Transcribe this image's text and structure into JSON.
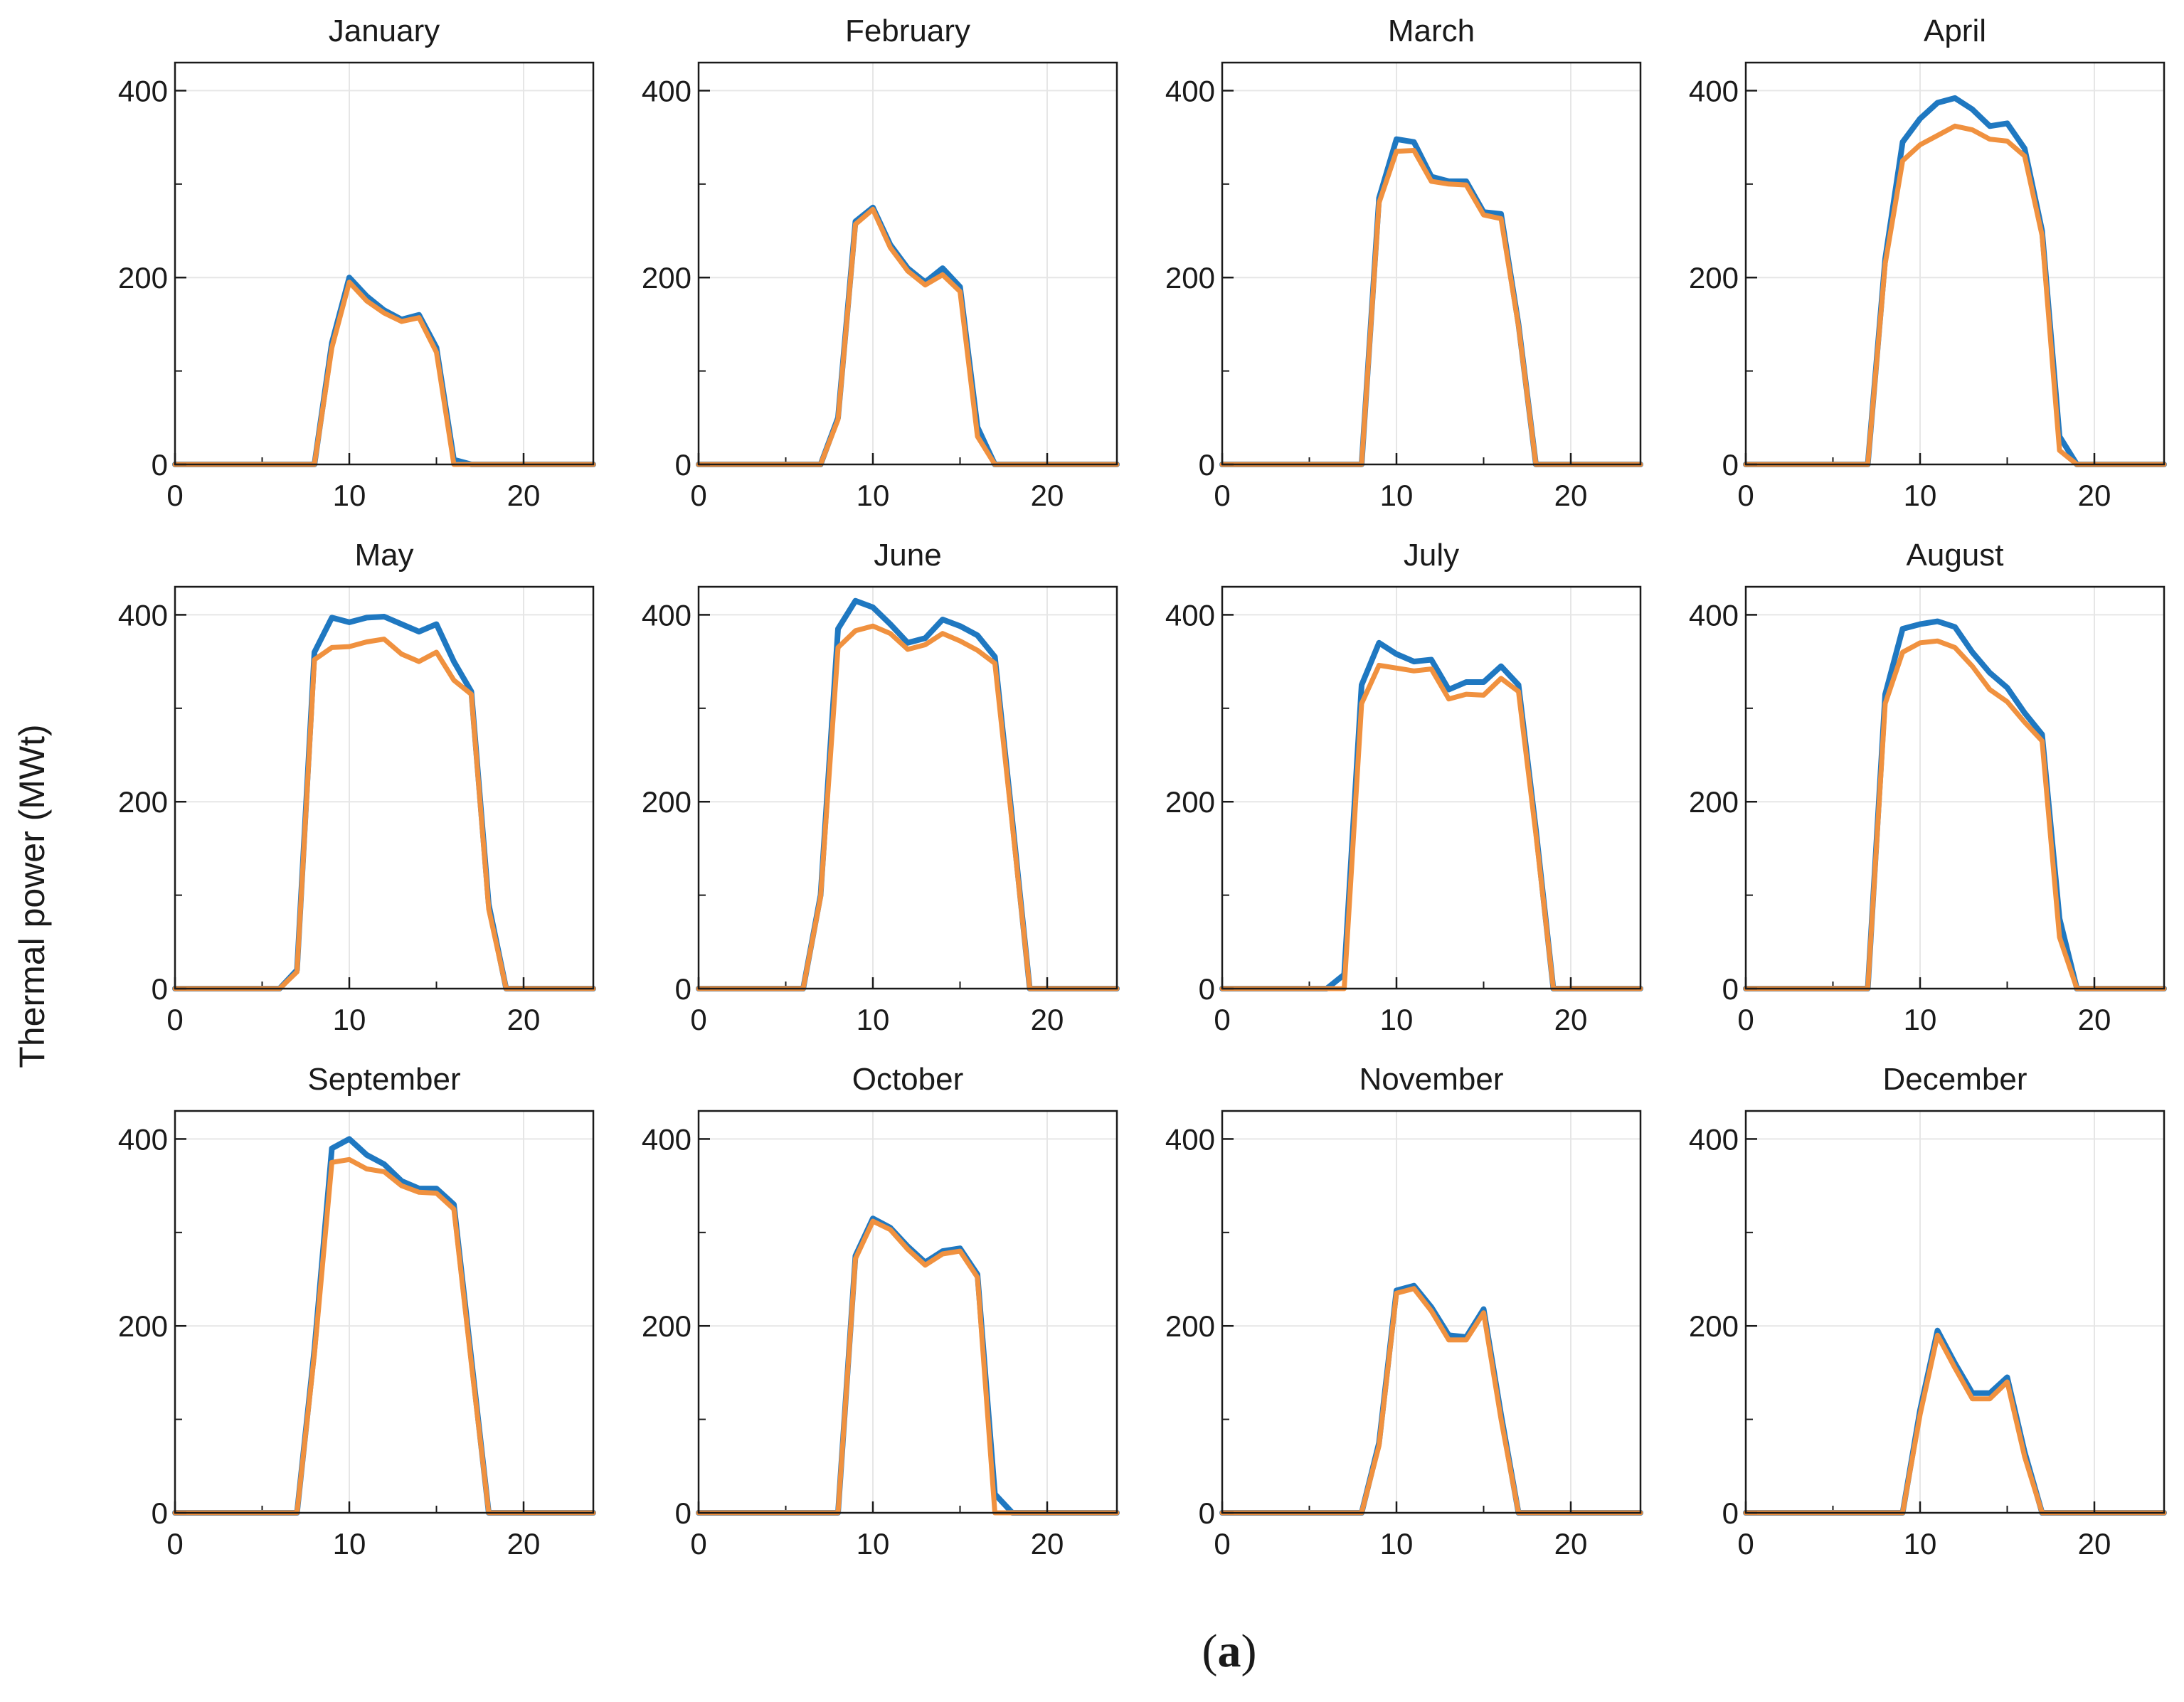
{
  "figure": {
    "ylabel": "Thermal power (MWt)",
    "caption": {
      "open": "(",
      "letter": "a",
      "close": ")"
    }
  },
  "colors": {
    "series_blue": "#1f78c1",
    "series_orange": "#f0913f",
    "grid": "#e6e6e6",
    "axis": "#1a1a1a"
  },
  "chart_data": [
    {
      "type": "line",
      "title": "January",
      "xlim": [
        0,
        24
      ],
      "ylim": [
        0,
        430
      ],
      "xticks": [
        0,
        10,
        20
      ],
      "yticks": [
        0,
        200,
        400
      ],
      "grid": true,
      "x": [
        0,
        1,
        2,
        3,
        4,
        5,
        6,
        7,
        8,
        9,
        10,
        11,
        12,
        13,
        14,
        15,
        16,
        17,
        18,
        19,
        20,
        21,
        22,
        23,
        24
      ],
      "series": [
        {
          "name": "series 1 (blue)",
          "values": [
            0,
            0,
            0,
            0,
            0,
            0,
            0,
            0,
            0,
            130,
            200,
            180,
            165,
            155,
            160,
            125,
            5,
            0,
            0,
            0,
            0,
            0,
            0,
            0,
            0
          ]
        },
        {
          "name": "series 2 (orange)",
          "values": [
            0,
            0,
            0,
            0,
            0,
            0,
            0,
            0,
            0,
            125,
            195,
            175,
            162,
            153,
            157,
            120,
            0,
            0,
            0,
            0,
            0,
            0,
            0,
            0,
            0
          ]
        }
      ]
    },
    {
      "type": "line",
      "title": "February",
      "xlim": [
        0,
        24
      ],
      "ylim": [
        0,
        430
      ],
      "xticks": [
        0,
        10,
        20
      ],
      "yticks": [
        0,
        200,
        400
      ],
      "grid": true,
      "x": [
        0,
        1,
        2,
        3,
        4,
        5,
        6,
        7,
        8,
        9,
        10,
        11,
        12,
        13,
        14,
        15,
        16,
        17,
        18,
        19,
        20,
        21,
        22,
        23,
        24
      ],
      "series": [
        {
          "name": "series 1 (blue)",
          "values": [
            0,
            0,
            0,
            0,
            0,
            0,
            0,
            0,
            50,
            260,
            275,
            235,
            210,
            195,
            210,
            190,
            40,
            0,
            0,
            0,
            0,
            0,
            0,
            0,
            0
          ]
        },
        {
          "name": "series 2 (orange)",
          "values": [
            0,
            0,
            0,
            0,
            0,
            0,
            0,
            0,
            48,
            257,
            273,
            232,
            207,
            192,
            203,
            185,
            30,
            0,
            0,
            0,
            0,
            0,
            0,
            0,
            0
          ]
        }
      ]
    },
    {
      "type": "line",
      "title": "March",
      "xlim": [
        0,
        24
      ],
      "ylim": [
        0,
        430
      ],
      "xticks": [
        0,
        10,
        20
      ],
      "yticks": [
        0,
        200,
        400
      ],
      "grid": true,
      "x": [
        0,
        1,
        2,
        3,
        4,
        5,
        6,
        7,
        8,
        9,
        10,
        11,
        12,
        13,
        14,
        15,
        16,
        17,
        18,
        19,
        20,
        21,
        22,
        23,
        24
      ],
      "series": [
        {
          "name": "series 1 (blue)",
          "values": [
            0,
            0,
            0,
            0,
            0,
            0,
            0,
            0,
            0,
            285,
            348,
            345,
            308,
            303,
            303,
            270,
            268,
            150,
            0,
            0,
            0,
            0,
            0,
            0,
            0
          ]
        },
        {
          "name": "series 2 (orange)",
          "values": [
            0,
            0,
            0,
            0,
            0,
            0,
            0,
            0,
            0,
            280,
            335,
            336,
            303,
            300,
            299,
            267,
            263,
            148,
            0,
            0,
            0,
            0,
            0,
            0,
            0
          ]
        }
      ]
    },
    {
      "type": "line",
      "title": "April",
      "xlim": [
        0,
        24
      ],
      "ylim": [
        0,
        430
      ],
      "xticks": [
        0,
        10,
        20
      ],
      "yticks": [
        0,
        200,
        400
      ],
      "grid": true,
      "x": [
        0,
        1,
        2,
        3,
        4,
        5,
        6,
        7,
        8,
        9,
        10,
        11,
        12,
        13,
        14,
        15,
        16,
        17,
        18,
        19,
        20,
        21,
        22,
        23,
        24
      ],
      "series": [
        {
          "name": "series 1 (blue)",
          "values": [
            0,
            0,
            0,
            0,
            0,
            0,
            0,
            0,
            220,
            345,
            370,
            387,
            392,
            380,
            362,
            365,
            338,
            250,
            30,
            0,
            0,
            0,
            0,
            0,
            0
          ]
        },
        {
          "name": "series 2 (orange)",
          "values": [
            0,
            0,
            0,
            0,
            0,
            0,
            0,
            0,
            215,
            325,
            342,
            352,
            362,
            358,
            348,
            346,
            330,
            245,
            15,
            0,
            0,
            0,
            0,
            0,
            0
          ]
        }
      ]
    },
    {
      "type": "line",
      "title": "May",
      "xlim": [
        0,
        24
      ],
      "ylim": [
        0,
        430
      ],
      "xticks": [
        0,
        10,
        20
      ],
      "yticks": [
        0,
        200,
        400
      ],
      "grid": true,
      "x": [
        0,
        1,
        2,
        3,
        4,
        5,
        6,
        7,
        8,
        9,
        10,
        11,
        12,
        13,
        14,
        15,
        16,
        17,
        18,
        19,
        20,
        21,
        22,
        23,
        24
      ],
      "series": [
        {
          "name": "series 1 (blue)",
          "values": [
            0,
            0,
            0,
            0,
            0,
            0,
            0,
            20,
            360,
            397,
            392,
            397,
            398,
            390,
            382,
            390,
            350,
            318,
            90,
            0,
            0,
            0,
            0,
            0,
            0
          ]
        },
        {
          "name": "series 2 (orange)",
          "values": [
            0,
            0,
            0,
            0,
            0,
            0,
            0,
            18,
            352,
            365,
            366,
            371,
            374,
            358,
            350,
            360,
            330,
            315,
            85,
            0,
            0,
            0,
            0,
            0,
            0
          ]
        }
      ]
    },
    {
      "type": "line",
      "title": "June",
      "xlim": [
        0,
        24
      ],
      "ylim": [
        0,
        430
      ],
      "xticks": [
        0,
        10,
        20
      ],
      "yticks": [
        0,
        200,
        400
      ],
      "grid": true,
      "x": [
        0,
        1,
        2,
        3,
        4,
        5,
        6,
        7,
        8,
        9,
        10,
        11,
        12,
        13,
        14,
        15,
        16,
        17,
        18,
        19,
        20,
        21,
        22,
        23,
        24
      ],
      "series": [
        {
          "name": "series 1 (blue)",
          "values": [
            0,
            0,
            0,
            0,
            0,
            0,
            0,
            100,
            385,
            415,
            408,
            390,
            370,
            375,
            395,
            388,
            378,
            355,
            180,
            0,
            0,
            0,
            0,
            0,
            0
          ]
        },
        {
          "name": "series 2 (orange)",
          "values": [
            0,
            0,
            0,
            0,
            0,
            0,
            0,
            98,
            365,
            383,
            388,
            380,
            363,
            368,
            380,
            372,
            362,
            348,
            175,
            0,
            0,
            0,
            0,
            0,
            0
          ]
        }
      ]
    },
    {
      "type": "line",
      "title": "July",
      "xlim": [
        0,
        24
      ],
      "ylim": [
        0,
        430
      ],
      "xticks": [
        0,
        10,
        20
      ],
      "yticks": [
        0,
        200,
        400
      ],
      "grid": true,
      "x": [
        0,
        1,
        2,
        3,
        4,
        5,
        6,
        7,
        8,
        9,
        10,
        11,
        12,
        13,
        14,
        15,
        16,
        17,
        18,
        19,
        20,
        21,
        22,
        23,
        24
      ],
      "series": [
        {
          "name": "series 1 (blue)",
          "values": [
            0,
            0,
            0,
            0,
            0,
            0,
            0,
            15,
            325,
            370,
            358,
            350,
            352,
            320,
            328,
            328,
            345,
            325,
            170,
            0,
            0,
            0,
            0,
            0,
            0
          ]
        },
        {
          "name": "series 2 (orange)",
          "values": [
            0,
            0,
            0,
            0,
            0,
            0,
            0,
            0,
            305,
            346,
            343,
            340,
            342,
            310,
            315,
            314,
            332,
            318,
            165,
            0,
            0,
            0,
            0,
            0,
            0
          ]
        }
      ]
    },
    {
      "type": "line",
      "title": "August",
      "xlim": [
        0,
        24
      ],
      "ylim": [
        0,
        430
      ],
      "xticks": [
        0,
        10,
        20
      ],
      "yticks": [
        0,
        200,
        400
      ],
      "grid": true,
      "x": [
        0,
        1,
        2,
        3,
        4,
        5,
        6,
        7,
        8,
        9,
        10,
        11,
        12,
        13,
        14,
        15,
        16,
        17,
        18,
        19,
        20,
        21,
        22,
        23,
        24
      ],
      "series": [
        {
          "name": "series 1 (blue)",
          "values": [
            0,
            0,
            0,
            0,
            0,
            0,
            0,
            0,
            315,
            385,
            390,
            393,
            387,
            360,
            338,
            322,
            295,
            272,
            75,
            0,
            0,
            0,
            0,
            0,
            0
          ]
        },
        {
          "name": "series 2 (orange)",
          "values": [
            0,
            0,
            0,
            0,
            0,
            0,
            0,
            0,
            305,
            360,
            370,
            372,
            365,
            345,
            320,
            307,
            285,
            265,
            55,
            0,
            0,
            0,
            0,
            0,
            0
          ]
        }
      ]
    },
    {
      "type": "line",
      "title": "September",
      "xlim": [
        0,
        24
      ],
      "ylim": [
        0,
        430
      ],
      "xticks": [
        0,
        10,
        20
      ],
      "yticks": [
        0,
        200,
        400
      ],
      "grid": true,
      "x": [
        0,
        1,
        2,
        3,
        4,
        5,
        6,
        7,
        8,
        9,
        10,
        11,
        12,
        13,
        14,
        15,
        16,
        17,
        18,
        19,
        20,
        21,
        22,
        23,
        24
      ],
      "series": [
        {
          "name": "series 1 (blue)",
          "values": [
            0,
            0,
            0,
            0,
            0,
            0,
            0,
            0,
            175,
            390,
            400,
            383,
            373,
            355,
            347,
            347,
            330,
            165,
            0,
            0,
            0,
            0,
            0,
            0,
            0
          ]
        },
        {
          "name": "series 2 (orange)",
          "values": [
            0,
            0,
            0,
            0,
            0,
            0,
            0,
            0,
            170,
            375,
            378,
            368,
            365,
            350,
            343,
            342,
            325,
            160,
            0,
            0,
            0,
            0,
            0,
            0,
            0
          ]
        }
      ]
    },
    {
      "type": "line",
      "title": "October",
      "xlim": [
        0,
        24
      ],
      "ylim": [
        0,
        430
      ],
      "xticks": [
        0,
        10,
        20
      ],
      "yticks": [
        0,
        200,
        400
      ],
      "grid": true,
      "x": [
        0,
        1,
        2,
        3,
        4,
        5,
        6,
        7,
        8,
        9,
        10,
        11,
        12,
        13,
        14,
        15,
        16,
        17,
        18,
        19,
        20,
        21,
        22,
        23,
        24
      ],
      "series": [
        {
          "name": "series 1 (blue)",
          "values": [
            0,
            0,
            0,
            0,
            0,
            0,
            0,
            0,
            0,
            275,
            315,
            305,
            285,
            268,
            280,
            283,
            255,
            20,
            0,
            0,
            0,
            0,
            0,
            0,
            0
          ]
        },
        {
          "name": "series 2 (orange)",
          "values": [
            0,
            0,
            0,
            0,
            0,
            0,
            0,
            0,
            0,
            272,
            312,
            303,
            282,
            265,
            277,
            280,
            252,
            0,
            0,
            0,
            0,
            0,
            0,
            0,
            0
          ]
        }
      ]
    },
    {
      "type": "line",
      "title": "November",
      "xlim": [
        0,
        24
      ],
      "ylim": [
        0,
        430
      ],
      "xticks": [
        0,
        10,
        20
      ],
      "yticks": [
        0,
        200,
        400
      ],
      "grid": true,
      "x": [
        0,
        1,
        2,
        3,
        4,
        5,
        6,
        7,
        8,
        9,
        10,
        11,
        12,
        13,
        14,
        15,
        16,
        17,
        18,
        19,
        20,
        21,
        22,
        23,
        24
      ],
      "series": [
        {
          "name": "series 1 (blue)",
          "values": [
            0,
            0,
            0,
            0,
            0,
            0,
            0,
            0,
            0,
            75,
            238,
            243,
            220,
            190,
            188,
            218,
            105,
            0,
            0,
            0,
            0,
            0,
            0,
            0,
            0
          ]
        },
        {
          "name": "series 2 (orange)",
          "values": [
            0,
            0,
            0,
            0,
            0,
            0,
            0,
            0,
            0,
            72,
            235,
            240,
            216,
            185,
            185,
            214,
            100,
            0,
            0,
            0,
            0,
            0,
            0,
            0,
            0
          ]
        }
      ]
    },
    {
      "type": "line",
      "title": "December",
      "xlim": [
        0,
        24
      ],
      "ylim": [
        0,
        430
      ],
      "xticks": [
        0,
        10,
        20
      ],
      "yticks": [
        0,
        200,
        400
      ],
      "grid": true,
      "x": [
        0,
        1,
        2,
        3,
        4,
        5,
        6,
        7,
        8,
        9,
        10,
        11,
        12,
        13,
        14,
        15,
        16,
        17,
        18,
        19,
        20,
        21,
        22,
        23,
        24
      ],
      "series": [
        {
          "name": "series 1 (blue)",
          "values": [
            0,
            0,
            0,
            0,
            0,
            0,
            0,
            0,
            0,
            0,
            110,
            195,
            160,
            128,
            128,
            145,
            65,
            0,
            0,
            0,
            0,
            0,
            0,
            0,
            0
          ]
        },
        {
          "name": "series 2 (orange)",
          "values": [
            0,
            0,
            0,
            0,
            0,
            0,
            0,
            0,
            0,
            0,
            105,
            190,
            155,
            122,
            122,
            140,
            60,
            0,
            0,
            0,
            0,
            0,
            0,
            0,
            0
          ]
        }
      ]
    }
  ]
}
